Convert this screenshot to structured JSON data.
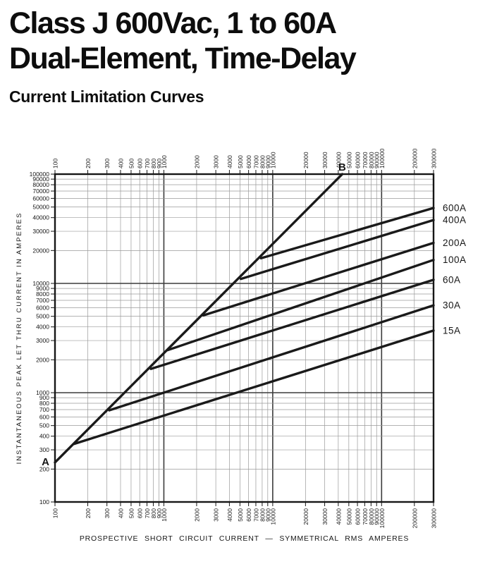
{
  "page": {
    "title_line1": "Class J 600Vac, 1 to 60A",
    "title_line2": "Dual-Element, Time-Delay",
    "subtitle": "Current Limitation Curves"
  },
  "colors": {
    "ink": "#161616",
    "curve": "#1a1a1a",
    "grid_major": "#3c3c3c",
    "grid_minor": "#9a9a9a",
    "background": "#ffffff"
  },
  "chart_data": {
    "type": "line",
    "title": "Current Limitation Curves",
    "xlabel": "PROSPECTIVE SHORT CIRCUIT CURRENT — SYMMETRICAL RMS AMPERES",
    "ylabel": "INSTANTANEOUS PEAK LET THRU CURRENT IN AMPERES",
    "x_scale": "log",
    "y_scale": "log",
    "xlim": [
      100,
      300000
    ],
    "ylim": [
      100,
      100000
    ],
    "grid": true,
    "legend_position": "labels-at-right-edge",
    "x_ticks": [
      100,
      200,
      300,
      400,
      500,
      600,
      700,
      800,
      900,
      1000,
      2000,
      3000,
      4000,
      5000,
      6000,
      7000,
      8000,
      9000,
      10000,
      20000,
      30000,
      40000,
      50000,
      60000,
      70000,
      80000,
      90000,
      100000,
      200000,
      300000
    ],
    "y_ticks": [
      100,
      200,
      300,
      400,
      500,
      600,
      700,
      800,
      900,
      1000,
      2000,
      3000,
      4000,
      5000,
      6000,
      7000,
      8000,
      9000,
      10000,
      20000,
      30000,
      40000,
      50000,
      60000,
      70000,
      80000,
      90000,
      100000
    ],
    "ab_line": {
      "start_label": "A",
      "end_label": "B",
      "points": [
        [
          100,
          230
        ],
        [
          43500,
          100000
        ]
      ]
    },
    "series": [
      {
        "name": "600A",
        "points": [
          [
            7800,
            17000
          ],
          [
            300000,
            49000
          ]
        ]
      },
      {
        "name": "400A",
        "points": [
          [
            5100,
            11000
          ],
          [
            300000,
            38000
          ]
        ]
      },
      {
        "name": "200A",
        "points": [
          [
            2300,
            5100
          ],
          [
            300000,
            23500
          ]
        ]
      },
      {
        "name": "100A",
        "points": [
          [
            1080,
            2450
          ],
          [
            300000,
            16400
          ]
        ]
      },
      {
        "name": "60A",
        "points": [
          [
            760,
            1650
          ],
          [
            300000,
            10800
          ]
        ]
      },
      {
        "name": "30A",
        "points": [
          [
            315,
            690
          ],
          [
            300000,
            6300
          ]
        ]
      },
      {
        "name": "15A",
        "points": [
          [
            150,
            340
          ],
          [
            300000,
            3700
          ]
        ]
      }
    ]
  }
}
